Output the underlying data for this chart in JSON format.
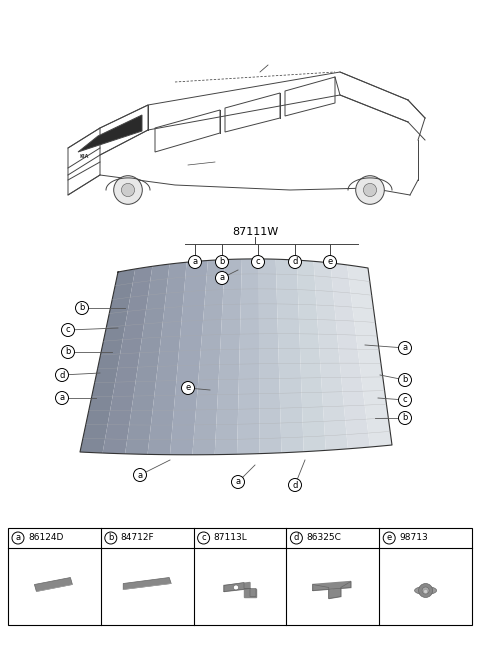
{
  "bg_color": "#ffffff",
  "part_label_text": "87111W",
  "parts": [
    {
      "id": "a",
      "code": "86124D"
    },
    {
      "id": "b",
      "code": "84712F"
    },
    {
      "id": "c",
      "code": "87113L"
    },
    {
      "id": "d",
      "code": "86325C"
    },
    {
      "id": "e",
      "code": "98713"
    }
  ],
  "line_color": "#444444",
  "glass_strips": [
    "#b0b8c0",
    "#b8c0c8",
    "#c0c8d0",
    "#c8d0d8",
    "#d0d8e0",
    "#c8d0d8",
    "#bcc4cc",
    "#b0b8c0",
    "#a8b0b8",
    "#a0a8b0",
    "#98a0a8",
    "#9098a0"
  ]
}
